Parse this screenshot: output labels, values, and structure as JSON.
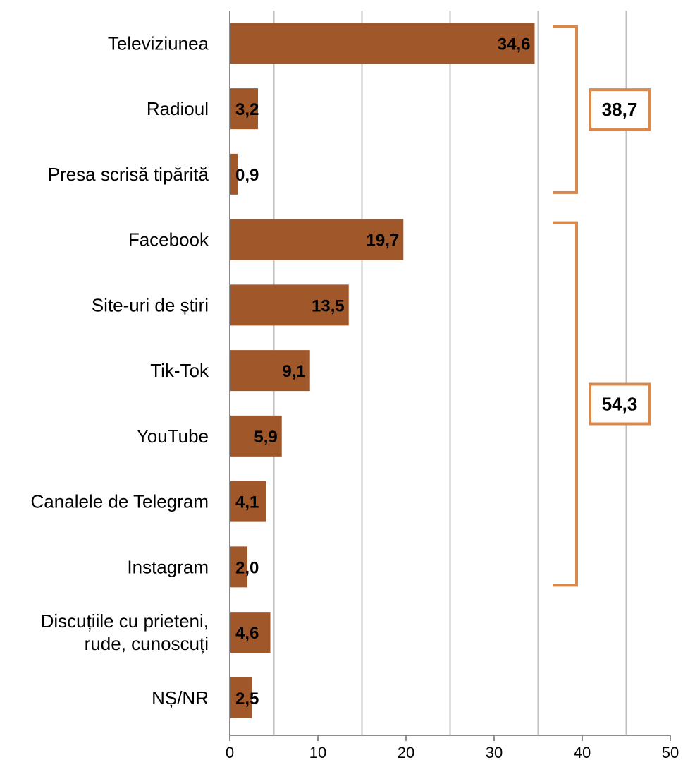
{
  "chart_data": {
    "type": "bar",
    "orientation": "horizontal",
    "categories": [
      "Televiziunea",
      "Radioul",
      "Presa scrisă tipărită",
      "Facebook",
      "Site-uri de știri",
      "Tik-Tok",
      "YouTube",
      "Canalele de Telegram",
      "Instagram",
      "Discuțiile cu prieteni, rude, cunoscuți",
      "NȘ/NR"
    ],
    "category_lines": [
      [
        "Televiziunea"
      ],
      [
        "Radioul"
      ],
      [
        "Presa scrisă tipărită"
      ],
      [
        "Facebook"
      ],
      [
        "Site-uri de știri"
      ],
      [
        "Tik-Tok"
      ],
      [
        "YouTube"
      ],
      [
        "Canalele de Telegram"
      ],
      [
        "Instagram"
      ],
      [
        "Discuțiile cu prieteni,",
        "rude, cunoscuți"
      ],
      [
        "NȘ/NR"
      ]
    ],
    "values": [
      34.6,
      3.2,
      0.9,
      19.7,
      13.5,
      9.1,
      5.9,
      4.1,
      2.0,
      4.6,
      2.5
    ],
    "value_labels": [
      "34,6",
      "3,2",
      "0,9",
      "19,7",
      "13,5",
      "9,1",
      "5,9",
      "4,1",
      "2,0",
      "4,6",
      "2,5"
    ],
    "xlim": [
      0,
      50
    ],
    "xticks": [
      0,
      10,
      20,
      30,
      40,
      50
    ],
    "xtick_labels": [
      "0",
      "10",
      "20",
      "30",
      "40",
      "50"
    ],
    "grid": true,
    "bar_color": "#A0582B",
    "grid_color": "#C0C0C0",
    "bracket_color": "#D9884E",
    "groups": [
      {
        "label": "38,7",
        "from_index": 0,
        "to_index": 2
      },
      {
        "label": "54,3",
        "from_index": 3,
        "to_index": 8
      }
    ],
    "title": "",
    "xlabel": "",
    "ylabel": ""
  }
}
